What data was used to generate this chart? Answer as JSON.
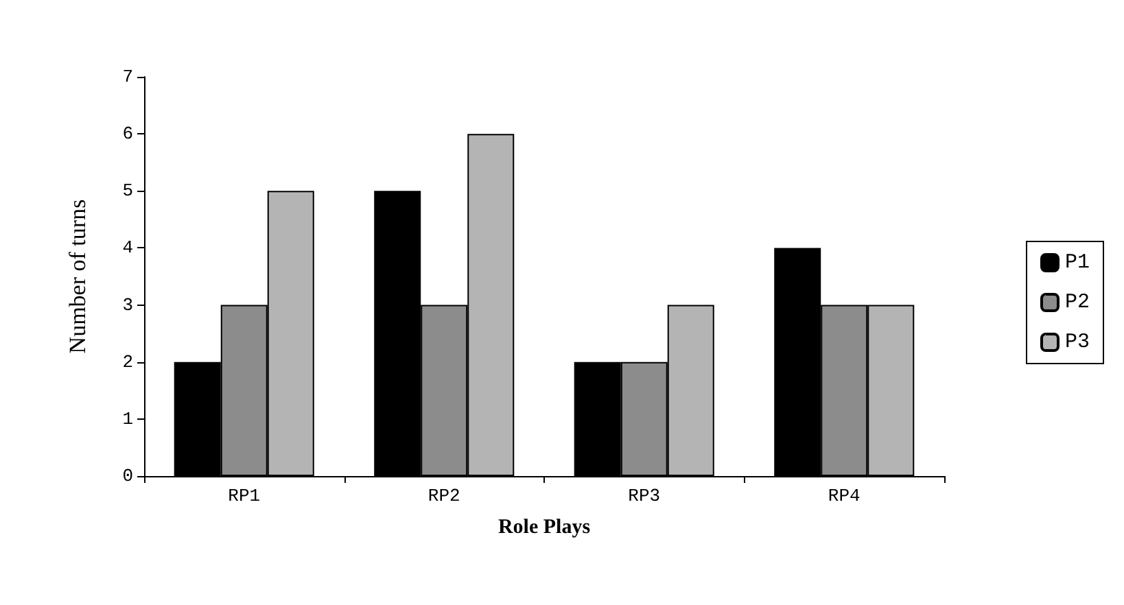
{
  "chart_data": {
    "type": "bar",
    "xlabel": "Role Plays",
    "ylabel": "Number of turns",
    "categories": [
      "RP1",
      "RP2",
      "RP3",
      "RP4"
    ],
    "series": [
      {
        "name": "P1",
        "color": "#000000",
        "values": [
          2,
          5,
          2,
          4
        ]
      },
      {
        "name": "P2",
        "color": "#8c8c8c",
        "values": [
          3,
          3,
          2,
          3
        ]
      },
      {
        "name": "P3",
        "color": "#b4b4b4",
        "values": [
          5,
          6,
          3,
          3
        ]
      }
    ],
    "ylim": [
      0,
      7
    ],
    "yticks": [
      0,
      1,
      2,
      3,
      4,
      5,
      6,
      7
    ],
    "grid": false,
    "legend": "right"
  }
}
